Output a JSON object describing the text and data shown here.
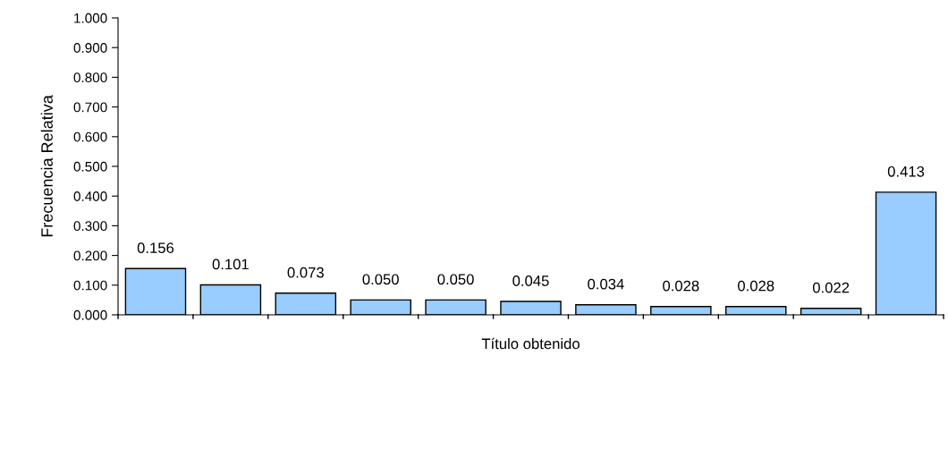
{
  "chart_data": {
    "type": "bar",
    "xlabel": "Título obtenido",
    "ylabel": "Frecuencia Relativa",
    "categories": [
      null,
      null,
      null,
      null,
      null,
      null,
      null,
      null,
      null,
      null,
      null
    ],
    "values": [
      0.156,
      0.101,
      0.073,
      0.05,
      0.05,
      0.045,
      0.034,
      0.028,
      0.028,
      0.022,
      0.413
    ],
    "value_labels": [
      "0.156",
      "0.101",
      "0.073",
      "0.050",
      "0.050",
      "0.045",
      "0.034",
      "0.028",
      "0.028",
      "0.022",
      "0.413"
    ],
    "color": "#99ccff",
    "ylim": [
      0,
      1
    ],
    "yticks": [
      {
        "value": 0,
        "label": "0.000"
      },
      {
        "value": 0.1,
        "label": "0.100"
      },
      {
        "value": 0.2,
        "label": "0.200"
      },
      {
        "value": 0.3,
        "label": "0.300"
      },
      {
        "value": 0.4,
        "label": "0.400"
      },
      {
        "value": 0.5,
        "label": "0.500"
      },
      {
        "value": 0.6,
        "label": "0.600"
      },
      {
        "value": 0.7,
        "label": "0.700"
      },
      {
        "value": 0.8,
        "label": "0.800"
      },
      {
        "value": 0.9,
        "label": "0.900"
      },
      {
        "value": 1,
        "label": "1.000"
      }
    ],
    "grid": false
  }
}
